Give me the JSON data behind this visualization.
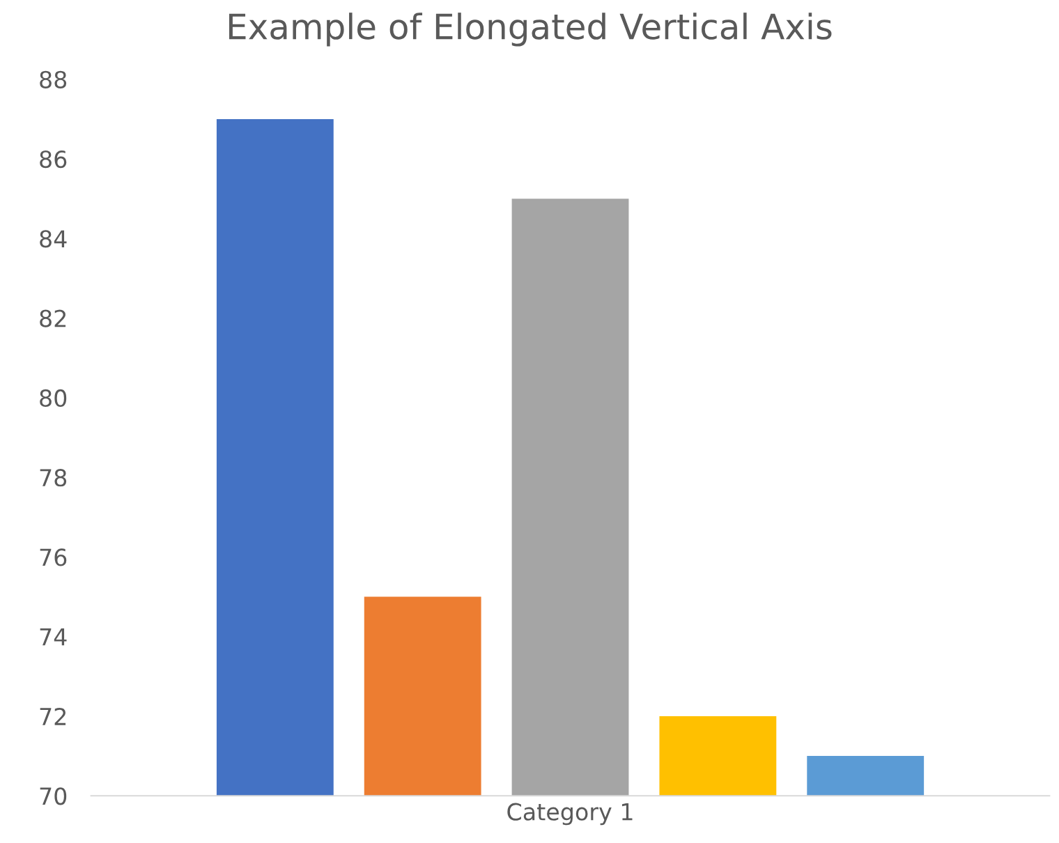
{
  "chart_data": {
    "type": "bar",
    "title": "Example of Elongated Vertical Axis",
    "categories": [
      "Category 1"
    ],
    "series": [
      {
        "color": "#4472c4",
        "values": [
          87
        ]
      },
      {
        "color": "#ed7d31",
        "values": [
          75
        ]
      },
      {
        "color": "#a5a5a5",
        "values": [
          85
        ]
      },
      {
        "color": "#ffc000",
        "values": [
          72
        ]
      },
      {
        "color": "#5b9bd5",
        "values": [
          71
        ]
      }
    ],
    "ylim": [
      70,
      88
    ],
    "yticks": [
      70,
      72,
      74,
      76,
      78,
      80,
      82,
      84,
      86,
      88
    ],
    "grid": false
  }
}
